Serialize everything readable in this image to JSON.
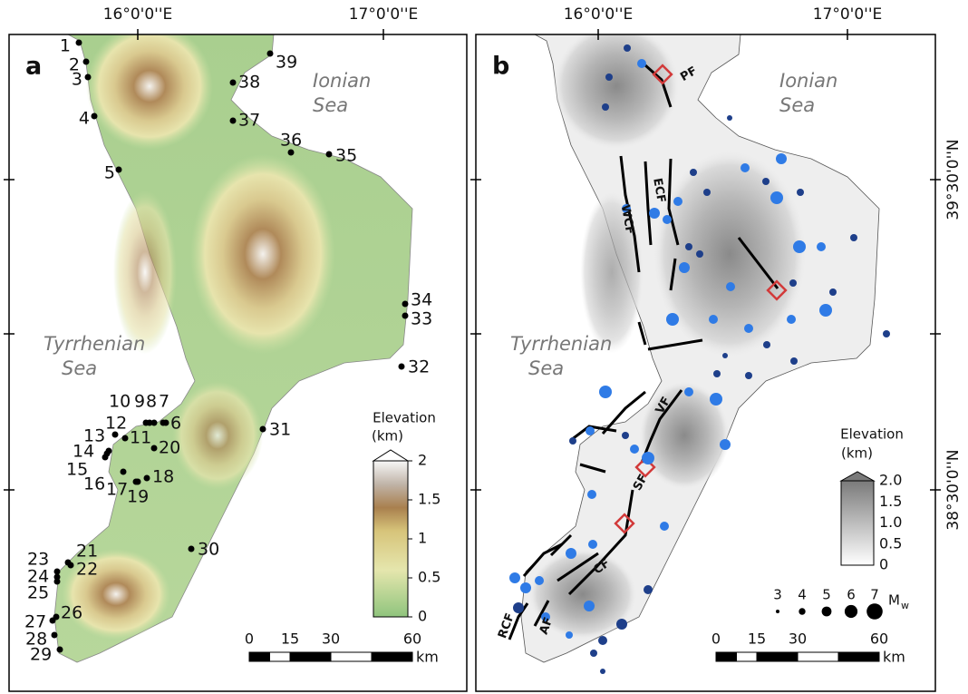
{
  "graticule": {
    "longitudes": [
      "16°0'0''E",
      "17°0'0''E"
    ],
    "latitudes": [
      "39°30'0''N",
      "38°30'0''N"
    ]
  },
  "panel_a": {
    "label": "a",
    "seas": [
      [
        "Ionian",
        "Sea"
      ],
      [
        "Tyrrhenian",
        "Sea"
      ]
    ],
    "sites": [
      "1",
      "2",
      "3",
      "4",
      "5",
      "6",
      "7",
      "8",
      "9",
      "10",
      "11",
      "12",
      "13",
      "14",
      "15",
      "16",
      "17",
      "18",
      "19",
      "20",
      "21",
      "22",
      "23",
      "24",
      "25",
      "26",
      "27",
      "28",
      "29",
      "30",
      "31",
      "32",
      "33",
      "34",
      "35",
      "36",
      "37",
      "38",
      "39"
    ],
    "legend": {
      "title": [
        "Elevation",
        "(km)"
      ],
      "ticks": [
        "0",
        "0.5",
        "1",
        "1.5",
        "2"
      ]
    },
    "scale_bar": {
      "ticks": [
        "0",
        "15",
        "30",
        "60"
      ],
      "unit": "km"
    }
  },
  "panel_b": {
    "label": "b",
    "seas": [
      [
        "Ionian",
        "Sea"
      ],
      [
        "Tyrrhenian",
        "Sea"
      ]
    ],
    "faults": [
      "PF",
      "ECF",
      "WCF",
      "VF",
      "SF",
      "CF",
      "AF",
      "RCF"
    ],
    "legend": {
      "title": [
        "Elevation",
        "(km)"
      ],
      "ticks": [
        "0",
        "0.5",
        "1.0",
        "1.5",
        "2.0"
      ]
    },
    "magnitude_legend": {
      "sizes": [
        "3",
        "4",
        "5",
        "6",
        "7"
      ],
      "symbol": "M",
      "subscript": "w"
    },
    "scale_bar": {
      "ticks": [
        "0",
        "15",
        "30",
        "60"
      ],
      "unit": "km"
    }
  }
}
